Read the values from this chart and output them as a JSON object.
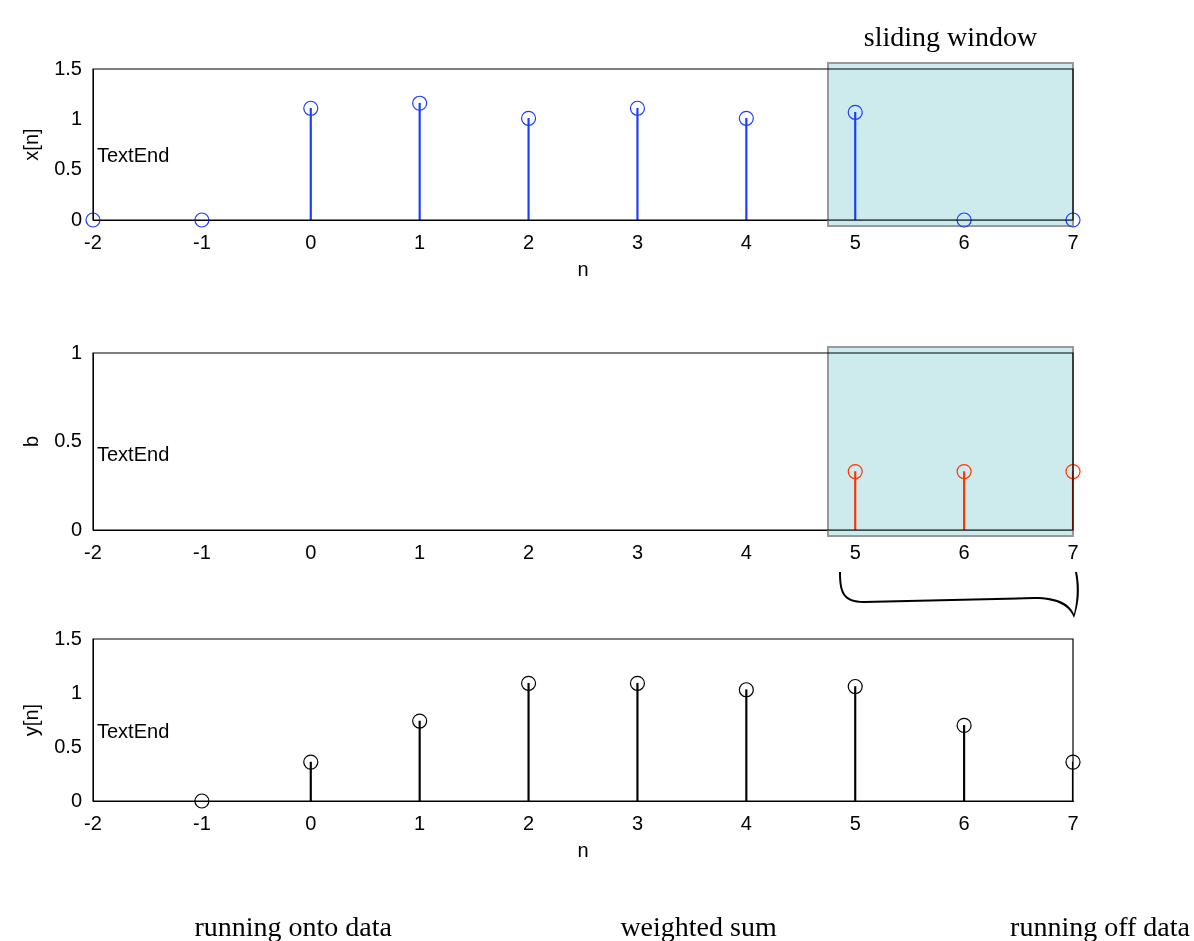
{
  "chart_data": [
    {
      "type": "lollipop",
      "x": [
        -2,
        -1,
        0,
        1,
        2,
        3,
        4,
        5,
        6,
        7
      ],
      "values": [
        0,
        0,
        1.11,
        1.16,
        1.01,
        1.11,
        1.01,
        1.07,
        0,
        0
      ],
      "color": "#1a3cff",
      "xlim": [
        -2,
        7
      ],
      "xticks": [
        -2,
        -1,
        0,
        1,
        2,
        3,
        4,
        5,
        6,
        7
      ],
      "ylim": [
        0,
        1.5
      ],
      "yticks": [
        0,
        0.5,
        1,
        1.5
      ],
      "xlabel": "n",
      "ylabel": "x[n]",
      "marker": "circle",
      "annotations": [
        "TextEnd"
      ],
      "bands": [
        {
          "axis": "x",
          "from": 4.75,
          "to": 7,
          "label": "sliding window",
          "color": "#b8e2e6"
        }
      ]
    },
    {
      "type": "lollipop",
      "x": [
        5,
        6,
        7
      ],
      "values": [
        0.33,
        0.33,
        0.33
      ],
      "color": "#ff3300",
      "xlim": [
        -2,
        7
      ],
      "xticks": [
        -2,
        -1,
        0,
        1,
        2,
        3,
        4,
        5,
        6,
        7
      ],
      "ylim": [
        0,
        1
      ],
      "yticks": [
        0,
        0.5,
        1
      ],
      "ylabel": "b",
      "marker": "circle",
      "annotations": [
        "TextEnd"
      ],
      "bands": [
        {
          "axis": "x",
          "from": 4.75,
          "to": 7,
          "color": "#b8e2e6"
        }
      ]
    },
    {
      "type": "lollipop",
      "x": [
        -1,
        0,
        1,
        2,
        3,
        4,
        5,
        6,
        7
      ],
      "values": [
        0,
        0.36,
        0.74,
        1.09,
        1.09,
        1.03,
        1.06,
        0.7,
        0.36
      ],
      "color": "#000000",
      "xlim": [
        -2,
        7
      ],
      "xticks": [
        -2,
        -1,
        0,
        1,
        2,
        3,
        4,
        5,
        6,
        7
      ],
      "ylim": [
        0,
        1.5
      ],
      "yticks": [
        0,
        0.5,
        1,
        1.5
      ],
      "xlabel": "n",
      "ylabel": "y[n]",
      "marker": "circle",
      "annotations": [
        "TextEnd",
        "running onto data",
        "weighted sum",
        "running off data"
      ]
    }
  ]
}
